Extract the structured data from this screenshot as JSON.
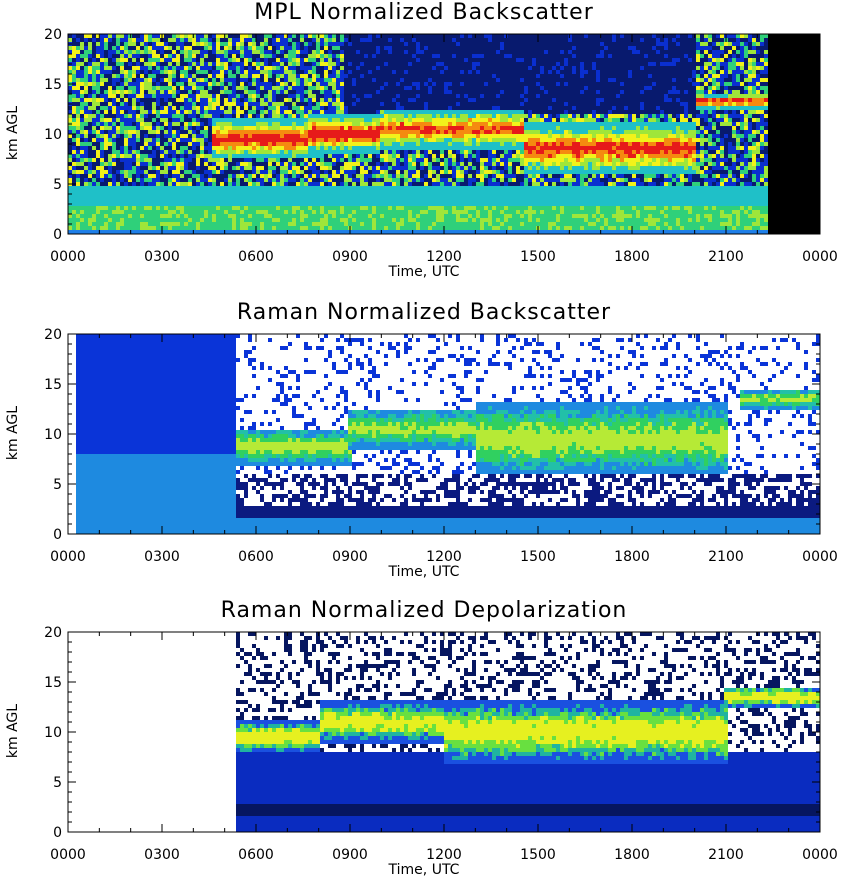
{
  "chart_data": [
    {
      "type": "heatmap",
      "title": "MPL Normalized Backscatter",
      "xlabel": "Time, UTC",
      "ylabel": "km AGL",
      "x_ticks": [
        "0000",
        "0300",
        "0600",
        "0900",
        "1200",
        "1500",
        "1800",
        "2100",
        "0000"
      ],
      "y_ticks": [
        "0",
        "5",
        "10",
        "15",
        "20"
      ],
      "xlim_hours": [
        0,
        24
      ],
      "ylim_km": [
        0,
        20
      ],
      "colormap": [
        "#000000",
        "#081a6e",
        "#0a2fd0",
        "#1f7fe8",
        "#1fc0c8",
        "#2fd07a",
        "#9fe63a",
        "#f2f21a",
        "#f58a10",
        "#e61a1a"
      ],
      "no_data_color": "#000000",
      "cloud_layers": [
        {
          "t_start": 4.6,
          "t_end": 8.2,
          "base_km": 7.5,
          "top_km": 11.5,
          "intensity": 0.85
        },
        {
          "t_start": 7.6,
          "t_end": 10.0,
          "base_km": 8.0,
          "top_km": 12.0,
          "intensity": 0.9
        },
        {
          "t_start": 10.0,
          "t_end": 14.5,
          "base_km": 8.5,
          "top_km": 12.5,
          "intensity": 0.75
        },
        {
          "t_start": 14.5,
          "t_end": 20.0,
          "base_km": 6.0,
          "top_km": 11.0,
          "intensity": 0.8
        },
        {
          "t_start": 20.0,
          "t_end": 22.4,
          "base_km": 12.5,
          "top_km": 14.0,
          "intensity": 0.85
        }
      ],
      "data_end_hours": 22.4
    },
    {
      "type": "heatmap",
      "title": "Raman Normalized Backscatter",
      "xlabel": "Time, UTC",
      "ylabel": "km AGL",
      "x_ticks": [
        "0000",
        "0300",
        "0600",
        "0900",
        "1200",
        "1500",
        "1800",
        "2100",
        "0000"
      ],
      "y_ticks": [
        "0",
        "5",
        "10",
        "15",
        "20"
      ],
      "xlim_hours": [
        0,
        24
      ],
      "ylim_km": [
        0,
        20
      ],
      "colormap": [
        "#ffffff",
        "#0b1a80",
        "#0a34d8",
        "#1e8ae0",
        "#22c0a8",
        "#30d060",
        "#b6ea36"
      ],
      "no_data_color": "#ffffff",
      "cloud_layers": [
        {
          "t_start": 5.3,
          "t_end": 9.0,
          "base_km": 7.0,
          "top_km": 10.5,
          "intensity": 0.8
        },
        {
          "t_start": 9.0,
          "t_end": 13.0,
          "base_km": 8.5,
          "top_km": 12.5,
          "intensity": 0.7
        },
        {
          "t_start": 13.0,
          "t_end": 21.0,
          "base_km": 6.0,
          "top_km": 13.0,
          "intensity": 0.8
        },
        {
          "t_start": 21.5,
          "t_end": 24.0,
          "base_km": 12.5,
          "top_km": 14.5,
          "intensity": 0.7
        }
      ],
      "data_start_hours": 5.3
    },
    {
      "type": "heatmap",
      "title": "Raman Normalized Depolarization",
      "xlabel": "Time, UTC",
      "ylabel": "km AGL",
      "x_ticks": [
        "0000",
        "0300",
        "0600",
        "0900",
        "1200",
        "1500",
        "1800",
        "2100",
        "0000"
      ],
      "y_ticks": [
        "0",
        "5",
        "10",
        "15",
        "20"
      ],
      "xlim_hours": [
        0,
        24
      ],
      "ylim_km": [
        0,
        20
      ],
      "colormap": [
        "#ffffff",
        "#061660",
        "#0a2cc0",
        "#1a50e0",
        "#20b4a0",
        "#68e040",
        "#e6f020"
      ],
      "no_data_color": "#ffffff",
      "cloud_layers": [
        {
          "t_start": 5.3,
          "t_end": 8.0,
          "base_km": 8.0,
          "top_km": 11.0,
          "intensity": 0.9
        },
        {
          "t_start": 8.0,
          "t_end": 12.0,
          "base_km": 9.0,
          "top_km": 13.0,
          "intensity": 0.8
        },
        {
          "t_start": 12.0,
          "t_end": 21.0,
          "base_km": 7.0,
          "top_km": 13.0,
          "intensity": 0.85
        },
        {
          "t_start": 21.0,
          "t_end": 24.0,
          "base_km": 12.5,
          "top_km": 14.5,
          "intensity": 0.9
        }
      ],
      "data_start_hours": 5.3
    }
  ]
}
